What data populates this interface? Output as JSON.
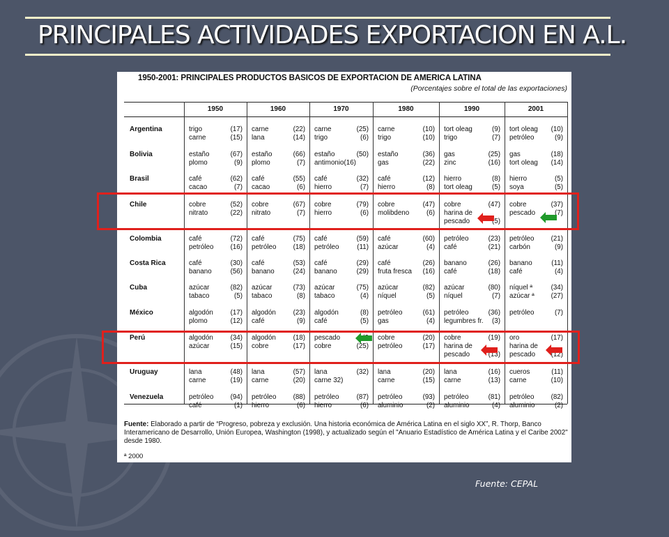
{
  "slide": {
    "title": "PRINCIPALES ACTIVIDADES EXPORTACION EN A.L.",
    "source": "Fuente: CEPAL"
  },
  "table": {
    "title": "1950-2001: PRINCIPALES PRODUCTOS BASICOS DE EXPORTACION DE AMERICA LATINA",
    "subtitle": "(Porcentajes sobre el total de las exportaciones)",
    "years": [
      "1950",
      "1960",
      "1970",
      "1980",
      "1990",
      "2001"
    ],
    "rows": [
      {
        "country": "Argentina",
        "cells": [
          [
            [
              "trigo",
              "(17)"
            ],
            [
              "carne",
              "(15)"
            ]
          ],
          [
            [
              "carne",
              "(22)"
            ],
            [
              "lana",
              "(14)"
            ]
          ],
          [
            [
              "carne",
              "(25)"
            ],
            [
              "trigo",
              "(6)"
            ]
          ],
          [
            [
              "carne",
              "(10)"
            ],
            [
              "trigo",
              "(10)"
            ]
          ],
          [
            [
              "tort oleag",
              "(9)"
            ],
            [
              "trigo",
              "(7)"
            ]
          ],
          [
            [
              "tort oleag",
              "(10)"
            ],
            [
              "petróleo",
              "(9)"
            ]
          ]
        ]
      },
      {
        "country": "Bolivia",
        "cells": [
          [
            [
              "estaño",
              "(67)"
            ],
            [
              "plomo",
              "(9)"
            ]
          ],
          [
            [
              "estaño",
              "(66)"
            ],
            [
              "plomo",
              "(7)"
            ]
          ],
          [
            [
              "estaño",
              "(50)"
            ],
            [
              "antimonio(16)",
              ""
            ]
          ],
          [
            [
              "estaño",
              "(36)"
            ],
            [
              "gas",
              "(22)"
            ]
          ],
          [
            [
              "gas",
              "(25)"
            ],
            [
              "zinc",
              "(16)"
            ]
          ],
          [
            [
              "gas",
              "(18)"
            ],
            [
              "tort oleag",
              "(14)"
            ]
          ]
        ]
      },
      {
        "country": "Brasil",
        "cells": [
          [
            [
              "café",
              "(62)"
            ],
            [
              "cacao",
              "(7)"
            ]
          ],
          [
            [
              "café",
              "(55)"
            ],
            [
              "cacao",
              "(6)"
            ]
          ],
          [
            [
              "café",
              "(32)"
            ],
            [
              "hierro",
              "(7)"
            ]
          ],
          [
            [
              "café",
              "(12)"
            ],
            [
              "hierro",
              "(8)"
            ]
          ],
          [
            [
              "hierro",
              "(8)"
            ],
            [
              "tort oleag",
              "(5)"
            ]
          ],
          [
            [
              "hierro",
              "(5)"
            ],
            [
              "soya",
              "(5)"
            ]
          ]
        ]
      },
      {
        "country": "Chile",
        "cells": [
          [
            [
              "cobre",
              "(52)"
            ],
            [
              "nitrato",
              "(22)"
            ]
          ],
          [
            [
              "cobre",
              "(67)"
            ],
            [
              "nitrato",
              "(7)"
            ]
          ],
          [
            [
              "cobre",
              "(79)"
            ],
            [
              "hierro",
              "(6)"
            ]
          ],
          [
            [
              "cobre",
              "(47)"
            ],
            [
              "molibdeno",
              "(6)"
            ]
          ],
          [
            [
              "cobre",
              "(47)"
            ],
            [
              "harina de",
              ""
            ],
            [
              "pescado",
              "(5)"
            ]
          ],
          [
            [
              "cobre",
              "(37)"
            ],
            [
              "pescado",
              "(7)"
            ]
          ]
        ]
      },
      {
        "country": "Colombia",
        "cells": [
          [
            [
              "café",
              "(72)"
            ],
            [
              "petróleo",
              "(16)"
            ]
          ],
          [
            [
              "café",
              "(75)"
            ],
            [
              "petróleo",
              "(18)"
            ]
          ],
          [
            [
              "café",
              "(59)"
            ],
            [
              "petróleo",
              "(11)"
            ]
          ],
          [
            [
              "café",
              "(60)"
            ],
            [
              "azúcar",
              "(4)"
            ]
          ],
          [
            [
              "petróleo",
              "(23)"
            ],
            [
              "café",
              "(21)"
            ]
          ],
          [
            [
              "petróleo",
              "(21)"
            ],
            [
              "carbón",
              "(9)"
            ]
          ]
        ]
      },
      {
        "country": "Costa Rica",
        "cells": [
          [
            [
              "café",
              "(30)"
            ],
            [
              "banano",
              "(56)"
            ]
          ],
          [
            [
              "café",
              "(53)"
            ],
            [
              "banano",
              "(24)"
            ]
          ],
          [
            [
              "café",
              "(29)"
            ],
            [
              "banano",
              "(29)"
            ]
          ],
          [
            [
              "café",
              "(26)"
            ],
            [
              "fruta fresca",
              "(16)"
            ]
          ],
          [
            [
              "banano",
              "(26)"
            ],
            [
              "café",
              "(18)"
            ]
          ],
          [
            [
              "banano",
              "(11)"
            ],
            [
              "café",
              "(4)"
            ]
          ]
        ]
      },
      {
        "country": "Cuba",
        "cells": [
          [
            [
              "azúcar",
              "(82)"
            ],
            [
              "tabaco",
              "(5)"
            ]
          ],
          [
            [
              "azúcar",
              "(73)"
            ],
            [
              "tabaco",
              "(8)"
            ]
          ],
          [
            [
              "azúcar",
              "(75)"
            ],
            [
              "tabaco",
              "(4)"
            ]
          ],
          [
            [
              "azúcar",
              "(82)"
            ],
            [
              "níquel",
              "(5)"
            ]
          ],
          [
            [
              "azúcar",
              "(80)"
            ],
            [
              "níquel",
              "(7)"
            ]
          ],
          [
            [
              "níquel ª",
              "(34)"
            ],
            [
              "azúcar ª",
              "(27)"
            ]
          ]
        ]
      },
      {
        "country": "México",
        "cells": [
          [
            [
              "algodón",
              "(17)"
            ],
            [
              "plomo",
              "(12)"
            ]
          ],
          [
            [
              "algodón",
              "(23)"
            ],
            [
              "café",
              "(9)"
            ]
          ],
          [
            [
              "algodón",
              "(8)"
            ],
            [
              "café",
              "(5)"
            ]
          ],
          [
            [
              "petróleo",
              "(61)"
            ],
            [
              "gas",
              "(4)"
            ]
          ],
          [
            [
              "petróleo",
              "(36)"
            ],
            [
              "legumbres fr.",
              "(3)"
            ]
          ],
          [
            [
              "petróleo",
              "(7)"
            ]
          ]
        ]
      },
      {
        "country": "Perú",
        "cells": [
          [
            [
              "algodón",
              "(34)"
            ],
            [
              "azúcar",
              "(15)"
            ]
          ],
          [
            [
              "algodón",
              "(18)"
            ],
            [
              "cobre",
              "(17)"
            ]
          ],
          [
            [
              "pescado",
              "(2"
            ],
            [
              "cobre",
              "(25)"
            ]
          ],
          [
            [
              "cobre",
              "(20)"
            ],
            [
              "petróleo",
              "(17)"
            ]
          ],
          [
            [
              "cobre",
              "(19)"
            ],
            [
              "harina de",
              ""
            ],
            [
              "pescado",
              "(13)"
            ]
          ],
          [
            [
              "oro",
              "(17)"
            ],
            [
              "harina de",
              ""
            ],
            [
              "pescado",
              "(12)"
            ]
          ]
        ]
      },
      {
        "country": "Uruguay",
        "cells": [
          [
            [
              "lana",
              "(48)"
            ],
            [
              "carne",
              "(19)"
            ]
          ],
          [
            [
              "lana",
              "(57)"
            ],
            [
              "carne",
              "(20)"
            ]
          ],
          [
            [
              "lana",
              "(32)"
            ],
            [
              "carne 32)",
              ""
            ]
          ],
          [
            [
              "lana",
              "(20)"
            ],
            [
              "carne",
              "(15)"
            ]
          ],
          [
            [
              "lana",
              "(16)"
            ],
            [
              "carne",
              "(13)"
            ]
          ],
          [
            [
              "cueros",
              "(11)"
            ],
            [
              "carne",
              "(10)"
            ]
          ]
        ]
      },
      {
        "country": "Venezuela",
        "cells": [
          [
            [
              "petróleo",
              "(94)"
            ],
            [
              "café",
              "(1)"
            ]
          ],
          [
            [
              "petróleo",
              "(88)"
            ],
            [
              "hierro",
              "(6)"
            ]
          ],
          [
            [
              "petróleo",
              "(87)"
            ],
            [
              "hierro",
              "(6)"
            ]
          ],
          [
            [
              "petróleo",
              "(93)"
            ],
            [
              "aluminio",
              "(2)"
            ]
          ],
          [
            [
              "petróleo",
              "(81)"
            ],
            [
              "aluminio",
              "(4)"
            ]
          ],
          [
            [
              "petróleo",
              "(82)"
            ],
            [
              "aluminio",
              "(2)"
            ]
          ]
        ]
      }
    ],
    "footnote_label": "Fuente:",
    "footnote_text": "Elaborado a partir de “Progreso, pobreza y exclusión. Una historia económica de América Latina en el siglo XX”, R. Thorp, Banco Interamericano de Desarrollo, Unión Europea, Washington (1998), y actualizado según el \"Anuario Estadístico de América Latina y el Caribe 2002\" desde 1980.",
    "footnote_a": "ª 2000"
  },
  "colors": {
    "background": "#4c5568",
    "highlight_box": "#e0201c",
    "arrow_red": "#e0201c",
    "arrow_green": "#1f9a2a"
  },
  "icons": [
    "red-arrow-icon",
    "green-arrow-icon",
    "compass-watermark-icon"
  ]
}
